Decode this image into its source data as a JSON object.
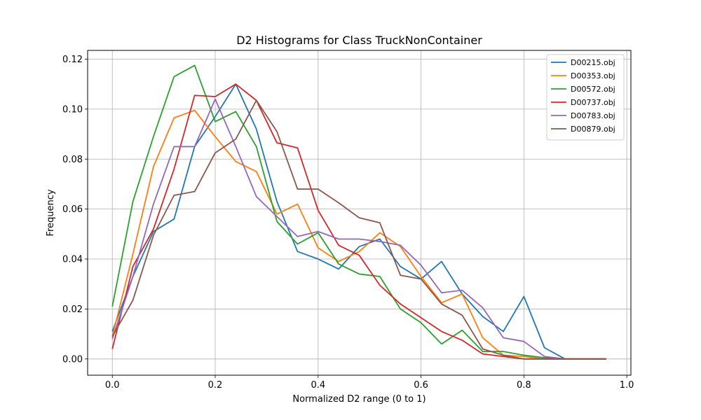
{
  "chart_data": {
    "type": "line",
    "title": "D2 Histograms for Class TruckNonContainer",
    "xlabel": "Normalized D2 range (0 to 1)",
    "ylabel": "Frequency",
    "xlim": [
      -0.048,
      1.008
    ],
    "ylim": [
      -0.0065,
      0.1235
    ],
    "xticks": [
      0.0,
      0.2,
      0.4,
      0.6,
      0.8,
      1.0
    ],
    "xtick_labels": [
      "0.0",
      "0.2",
      "0.4",
      "0.6",
      "0.8",
      "1.0"
    ],
    "yticks": [
      0.0,
      0.02,
      0.04,
      0.06,
      0.08,
      0.1,
      0.12
    ],
    "ytick_labels": [
      "0.00",
      "0.02",
      "0.04",
      "0.06",
      "0.08",
      "0.10",
      "0.12"
    ],
    "grid": true,
    "legend_position": "top-right",
    "x": [
      0.0,
      0.04,
      0.08,
      0.12,
      0.16,
      0.2,
      0.24,
      0.28,
      0.32,
      0.36,
      0.4,
      0.44,
      0.48,
      0.52,
      0.56,
      0.6,
      0.64,
      0.68,
      0.72,
      0.76,
      0.8,
      0.84,
      0.88,
      0.92,
      0.96
    ],
    "series": [
      {
        "name": "D00215.obj",
        "color": "#1f77b4",
        "values": [
          0.011,
          0.033,
          0.051,
          0.056,
          0.085,
          0.097,
          0.11,
          0.092,
          0.063,
          0.043,
          0.04,
          0.036,
          0.045,
          0.048,
          0.037,
          0.032,
          0.039,
          0.026,
          0.017,
          0.011,
          0.025,
          0.0045,
          0.0,
          0.0,
          0.0
        ]
      },
      {
        "name": "D00353.obj",
        "color": "#ff7f0e",
        "values": [
          0.009,
          0.042,
          0.077,
          0.0965,
          0.0995,
          0.089,
          0.079,
          0.075,
          0.058,
          0.062,
          0.0445,
          0.039,
          0.043,
          0.0505,
          0.045,
          0.033,
          0.0225,
          0.026,
          0.0085,
          0.0015,
          0.001,
          0.0,
          0.0,
          0.0,
          0.0
        ]
      },
      {
        "name": "D00572.obj",
        "color": "#2ca02c",
        "values": [
          0.021,
          0.063,
          0.089,
          0.113,
          0.1175,
          0.095,
          0.099,
          0.085,
          0.055,
          0.046,
          0.0505,
          0.038,
          0.034,
          0.033,
          0.02,
          0.0145,
          0.006,
          0.0115,
          0.003,
          0.003,
          0.0015,
          0.0005,
          0.0,
          0.0,
          0.0
        ]
      },
      {
        "name": "D00737.obj",
        "color": "#d62728",
        "values": [
          0.004,
          0.037,
          0.052,
          0.076,
          0.1055,
          0.105,
          0.11,
          0.1035,
          0.0865,
          0.0845,
          0.0595,
          0.0455,
          0.0415,
          0.0295,
          0.022,
          0.0165,
          0.011,
          0.0075,
          0.002,
          0.001,
          0.0,
          0.0,
          0.0,
          0.0,
          0.0
        ]
      },
      {
        "name": "D00783.obj",
        "color": "#9467bd",
        "values": [
          0.008,
          0.033,
          0.062,
          0.085,
          0.085,
          0.104,
          0.085,
          0.065,
          0.057,
          0.049,
          0.051,
          0.048,
          0.048,
          0.047,
          0.0455,
          0.0375,
          0.0265,
          0.0275,
          0.0205,
          0.0085,
          0.007,
          0.001,
          0.0,
          0.0,
          0.0
        ]
      },
      {
        "name": "D00879.obj",
        "color": "#8c564b",
        "values": [
          0.009,
          0.0235,
          0.0495,
          0.0655,
          0.067,
          0.0825,
          0.088,
          0.1035,
          0.091,
          0.068,
          0.068,
          0.0625,
          0.0565,
          0.0545,
          0.0335,
          0.032,
          0.022,
          0.0175,
          0.004,
          0.0015,
          0.0,
          0.0,
          0.0,
          0.0,
          0.0
        ]
      }
    ]
  }
}
